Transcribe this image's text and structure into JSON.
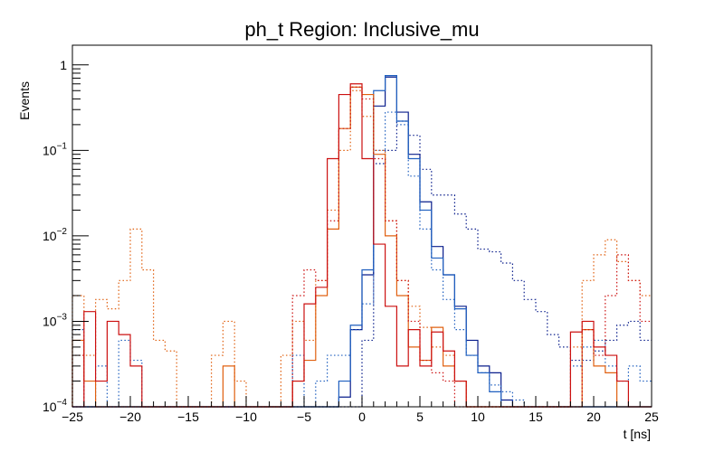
{
  "chart_data": {
    "type": "histogram",
    "title": "ph_t Region: Inclusive_mu",
    "xlabel": "t [ns]",
    "ylabel": "Events",
    "xlim": [
      -25,
      25
    ],
    "ylim": [
      0.0001,
      1.7
    ],
    "yscale": "log",
    "bin_width": 1,
    "bin_start": -25,
    "x_ticks": [
      -25,
      -20,
      -15,
      -10,
      -5,
      0,
      5,
      10,
      15,
      20,
      25
    ],
    "y_ticks": [
      {
        "value": 0.0001,
        "base": "10",
        "exp": "−4"
      },
      {
        "value": 0.001,
        "base": "10",
        "exp": "−3"
      },
      {
        "value": 0.01,
        "base": "10",
        "exp": "−2"
      },
      {
        "value": 0.1,
        "base": "10",
        "exp": "−1"
      },
      {
        "value": 1,
        "base": "1",
        "exp": ""
      }
    ],
    "series": [
      {
        "color": "#0a1e8c",
        "style": "solid",
        "values": [
          0,
          0,
          0,
          0,
          0,
          0,
          0,
          0,
          0,
          0,
          0,
          0,
          0,
          0,
          0,
          0,
          0,
          0,
          0,
          0,
          0,
          0,
          0,
          0.00013,
          0.0008,
          0.0035,
          0.33,
          0.72,
          0.28,
          0.09,
          0.025,
          0.0075,
          0.0035,
          0.0015,
          0.0006,
          0.0003,
          0.00025,
          0.00012,
          0,
          0,
          0,
          0,
          0,
          0,
          0,
          0,
          0,
          0,
          0,
          0
        ]
      },
      {
        "color": "#0a1e8c",
        "style": "dotted",
        "values": [
          0,
          0,
          0,
          0,
          0,
          0,
          0,
          0,
          0,
          0,
          0,
          0,
          0,
          0,
          0,
          0,
          0,
          0,
          0,
          0,
          0,
          0,
          0,
          0,
          0,
          0.0006,
          0.07,
          0.1,
          0.22,
          0.15,
          0.06,
          0.03,
          0.03,
          0.018,
          0.012,
          0.007,
          0.0065,
          0.0048,
          0.003,
          0.0018,
          0.0013,
          0.0007,
          0.0005,
          0.00035,
          0.00035,
          0.00045,
          0.0006,
          0.0009,
          0.001,
          0.0006
        ]
      },
      {
        "color": "#1f5fbf",
        "style": "solid",
        "values": [
          0,
          0,
          0,
          0,
          0,
          0,
          0,
          0,
          0,
          0,
          0,
          0,
          0,
          0,
          0,
          0,
          0,
          0,
          0,
          0,
          0,
          0,
          0,
          0.0002,
          0.0009,
          0.004,
          0.5,
          0.75,
          0.22,
          0.08,
          0.02,
          0.0055,
          0.0035,
          0.0014,
          0.0004,
          0.00025,
          0.00015,
          0.0001,
          0,
          0,
          0,
          0,
          0,
          0,
          0,
          0,
          0,
          0,
          0,
          0
        ]
      },
      {
        "color": "#1f5fbf",
        "style": "dotted",
        "values": [
          0.0008,
          0,
          0.0003,
          0,
          0.0006,
          0.00035,
          0,
          0,
          0,
          0,
          0,
          0,
          0,
          0,
          0,
          0,
          0,
          0,
          0,
          0.0004,
          0,
          0.0002,
          0.0004,
          0.0004,
          0.0008,
          0.0016,
          0.1,
          0.28,
          0.2,
          0.05,
          0.012,
          0.004,
          0.0018,
          0.0008,
          0.0004,
          0.00025,
          0.00018,
          0.00015,
          0.00012,
          0,
          0,
          0,
          0,
          0.0003,
          0.0005,
          0.0006,
          0.0003,
          0.0002,
          0.0003,
          0.0002
        ]
      },
      {
        "color": "#e06010",
        "style": "solid",
        "values": [
          0.0006,
          0.0002,
          0,
          0,
          0,
          0,
          0,
          0,
          0,
          0,
          0,
          0,
          0,
          0.0003,
          0,
          0,
          0,
          0,
          0,
          0.0002,
          0.00035,
          0.002,
          0.012,
          0.18,
          0.55,
          0.45,
          0.09,
          0.01,
          0.002,
          0.0005,
          0.00035,
          0.00085,
          0.0003,
          0.0002,
          0,
          0,
          0,
          0,
          0,
          0,
          0,
          0,
          0,
          0,
          0.0008,
          0.0003,
          0.00025,
          0,
          0,
          0
        ]
      },
      {
        "color": "#e06010",
        "style": "dotted",
        "values": [
          0.002,
          0.0004,
          0.0018,
          0.0014,
          0.003,
          0.012,
          0.004,
          0.0006,
          0.00045,
          0,
          0,
          0,
          0.0004,
          0.001,
          0.0002,
          0,
          0,
          0,
          0.0004,
          0.001,
          0.0006,
          0.003,
          0.02,
          0.1,
          0.5,
          0.25,
          0.1,
          0.015,
          0.003,
          0.0015,
          0.00085,
          0.0005,
          0.0004,
          0.0002,
          0.0001,
          0,
          0,
          0,
          0,
          0,
          0,
          0,
          0,
          0.0005,
          0.003,
          0.006,
          0.009,
          0.005,
          0.003,
          0.002
        ]
      },
      {
        "color": "#cc1010",
        "style": "solid",
        "values": [
          0,
          0.0013,
          0.0002,
          0.001,
          0.0007,
          0.0003,
          0,
          0,
          0,
          0,
          0,
          0,
          0,
          0,
          0,
          0,
          0,
          0,
          0,
          0.0002,
          0.0016,
          0.0025,
          0.08,
          0.45,
          0.6,
          0.08,
          0.008,
          0.0015,
          0.0003,
          0.0008,
          0.0003,
          0.00075,
          0.00045,
          0.0002,
          0,
          0,
          0,
          0,
          0,
          0,
          0,
          0,
          0,
          0.00075,
          0.001,
          0.0005,
          0.0004,
          0.0002,
          0,
          0
        ]
      },
      {
        "color": "#cc1010",
        "style": "dotted",
        "values": [
          0.0004,
          0,
          0,
          0,
          0,
          0,
          0,
          0,
          0,
          0,
          0,
          0,
          0,
          0,
          0,
          0,
          0,
          0,
          0,
          0.002,
          0.004,
          0.003,
          0.015,
          0.18,
          0.55,
          0.4,
          0.08,
          0.015,
          0.003,
          0.001,
          0.00035,
          0.00025,
          0.0002,
          0.0001,
          0,
          0,
          0,
          0,
          0,
          0,
          0,
          0,
          0,
          0,
          0.0008,
          0.0004,
          0.002,
          0.006,
          0.003,
          0.001
        ]
      }
    ]
  }
}
